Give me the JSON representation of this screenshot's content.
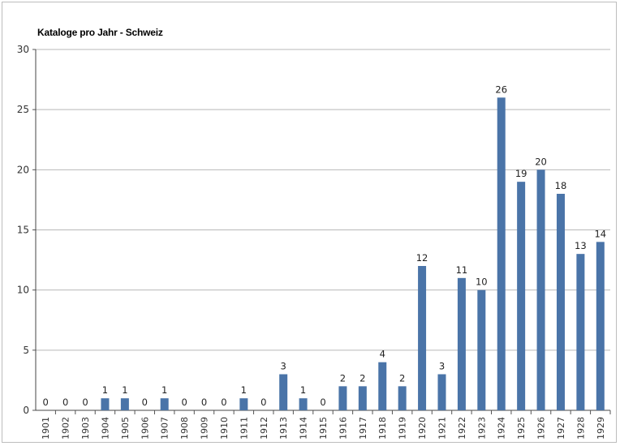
{
  "chart_data": {
    "type": "bar",
    "title": "Kataloge pro Jahr - Schweiz",
    "xlabel": "",
    "ylabel": "",
    "ylim": [
      0,
      30
    ],
    "yticks": [
      0,
      5,
      10,
      15,
      20,
      25,
      30
    ],
    "grid": true,
    "legend": "none",
    "bar_color": "#4a74a8",
    "categories": [
      "1901",
      "1902",
      "1903",
      "1904",
      "1905",
      "1906",
      "1907",
      "1908",
      "1909",
      "1910",
      "1911",
      "1912",
      "1913",
      "1914",
      "1915",
      "1916",
      "1917",
      "1918",
      "1919",
      "1920",
      "1921",
      "1922",
      "1923",
      "1924",
      "1925",
      "1926",
      "1927",
      "1928",
      "1929"
    ],
    "values": [
      0,
      0,
      0,
      1,
      1,
      0,
      1,
      0,
      0,
      0,
      1,
      0,
      3,
      1,
      0,
      2,
      2,
      4,
      2,
      12,
      3,
      11,
      10,
      26,
      19,
      20,
      18,
      13,
      14
    ]
  }
}
